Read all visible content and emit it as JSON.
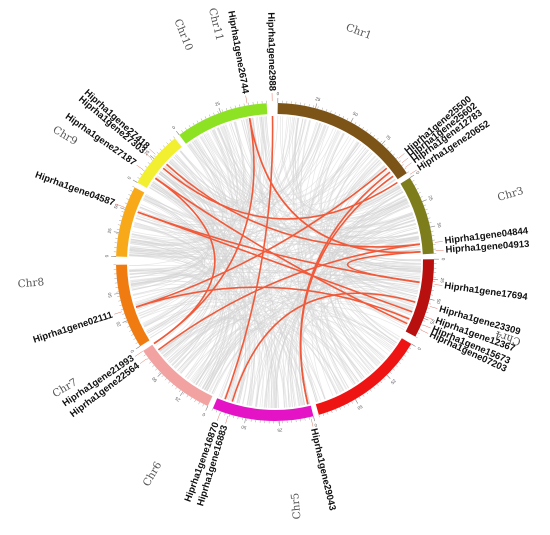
{
  "chromosomes": [
    {
      "name": "Chr1",
      "color": "#7d5417",
      "ticks": [
        "0",
        "25",
        "50",
        "75"
      ]
    },
    {
      "name": "Chr3",
      "color": "#7d7d1c",
      "ticks": [
        "0",
        "25",
        "50"
      ]
    },
    {
      "name": "Chr4",
      "color": "#b80f0f",
      "ticks": [
        "0",
        "25",
        "50",
        "75"
      ]
    },
    {
      "name": "Chr5",
      "color": "#ef1414",
      "ticks": [
        "0",
        "25",
        "50"
      ]
    },
    {
      "name": "Chr6",
      "color": "#e414c6",
      "ticks": [
        "0",
        "25",
        "50"
      ]
    },
    {
      "name": "Chr7",
      "color": "#f3a2a2",
      "ticks": [
        "0",
        "25",
        "50"
      ]
    },
    {
      "name": "Chr8",
      "color": "#f07b10",
      "ticks": [
        "0",
        "25",
        "50"
      ]
    },
    {
      "name": "Chr9",
      "color": "#f7a91a",
      "ticks": [
        "0",
        "25",
        "50"
      ]
    },
    {
      "name": "Chr10",
      "color": "#f2ef31",
      "ticks": [
        "0",
        "25"
      ]
    },
    {
      "name": "Chr11",
      "color": "#8ee224",
      "ticks": [
        "0",
        "25"
      ]
    }
  ],
  "genes": [
    {
      "label": "Hiprha1gene2988"
    },
    {
      "label": "Hiprha1gene26744"
    },
    {
      "label": "Hiprha1gene25500"
    },
    {
      "label": "Hiprha1gene25602"
    },
    {
      "label": "Hiprha1gene12783"
    },
    {
      "label": "Hiprha1gene20652"
    },
    {
      "label": "Hiprha1gene27418"
    },
    {
      "label": "Hiprha1gene27303"
    },
    {
      "label": "Hiprha1gene27187"
    },
    {
      "label": "Hiprha1gene04587"
    },
    {
      "label": "Hiprha1gene04844"
    },
    {
      "label": "Hiprha1gene04913"
    },
    {
      "label": "Hiprha1gene17694"
    },
    {
      "label": "Hiprha1gene23309"
    },
    {
      "label": "Hiprha1gene12367"
    },
    {
      "label": "Hiprha1gene15673"
    },
    {
      "label": "Hiprha1gene07203"
    },
    {
      "label": "Hiprha1gene02111"
    },
    {
      "label": "Hiprha1gene21993"
    },
    {
      "label": "Hiprha1gene22564"
    },
    {
      "label": "Hiprha1gene16870"
    },
    {
      "label": "Hiprha1gene16883"
    },
    {
      "label": "Hiprha1gene29043"
    }
  ],
  "links": [
    {
      "from": "Hiprha1gene26744",
      "to": "Hiprha1gene21993"
    },
    {
      "from": "Hiprha1gene26744",
      "to": "Hiprha1gene04913"
    },
    {
      "from": "Hiprha1gene2988",
      "to": "Hiprha1gene16870"
    },
    {
      "from": "Hiprha1gene25500",
      "to": "Hiprha1gene02111"
    },
    {
      "from": "Hiprha1gene20652",
      "to": "Hiprha1gene27303"
    },
    {
      "from": "Hiprha1gene12783",
      "to": "Hiprha1gene29043"
    },
    {
      "from": "Hiprha1gene27418",
      "to": "Hiprha1gene04844"
    },
    {
      "from": "Hiprha1gene27187",
      "to": "Hiprha1gene07203"
    },
    {
      "from": "Hiprha1gene04587",
      "to": "Hiprha1gene17694"
    },
    {
      "from": "Hiprha1gene04587",
      "to": "Hiprha1gene12367"
    },
    {
      "from": "Hiprha1gene04844",
      "to": "Hiprha1gene22564"
    },
    {
      "from": "Hiprha1gene23309",
      "to": "Hiprha1gene16883"
    },
    {
      "from": "Hiprha1gene15673",
      "to": "Hiprha1gene02111"
    },
    {
      "from": "Hiprha1gene17694",
      "to": "Hiprha1gene04913"
    },
    {
      "from": "Hiprha1gene29043",
      "to": "Hiprha1gene25602"
    },
    {
      "from": "Hiprha1gene21993",
      "to": "Hiprha1gene27187"
    }
  ],
  "colors": {
    "link": "#f05a3a",
    "background_link": "#d3d3d3",
    "tick": "#888888"
  }
}
